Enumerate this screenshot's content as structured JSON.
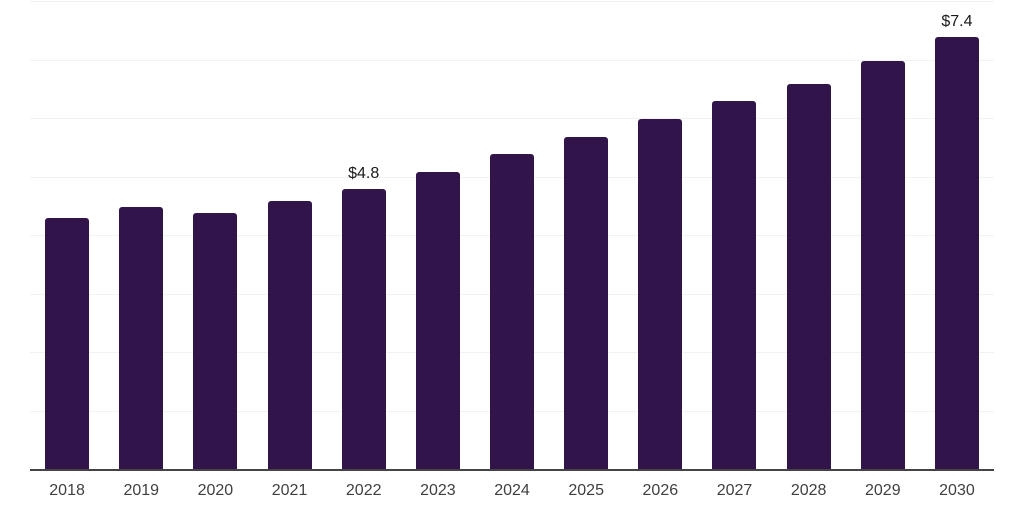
{
  "chart_data": {
    "type": "bar",
    "categories": [
      "2018",
      "2019",
      "2020",
      "2021",
      "2022",
      "2023",
      "2024",
      "2025",
      "2026",
      "2027",
      "2028",
      "2029",
      "2030"
    ],
    "values": [
      4.3,
      4.5,
      4.4,
      4.6,
      4.8,
      5.1,
      5.4,
      5.7,
      6.0,
      6.3,
      6.6,
      7.0,
      7.4
    ],
    "value_labels": {
      "2022": "$4.8",
      "2030": "$7.4"
    },
    "title": "",
    "xlabel": "",
    "ylabel": "",
    "ylim": [
      0,
      8
    ],
    "ytick_step": 1,
    "grid": "horizontal",
    "legend": "none",
    "colors": {
      "bar": "#31154a",
      "gridline": "#f2f2f2",
      "axis": "#444444",
      "tick_label": "#404040",
      "value_label": "#1a1a1a",
      "background": "#ffffff"
    }
  }
}
